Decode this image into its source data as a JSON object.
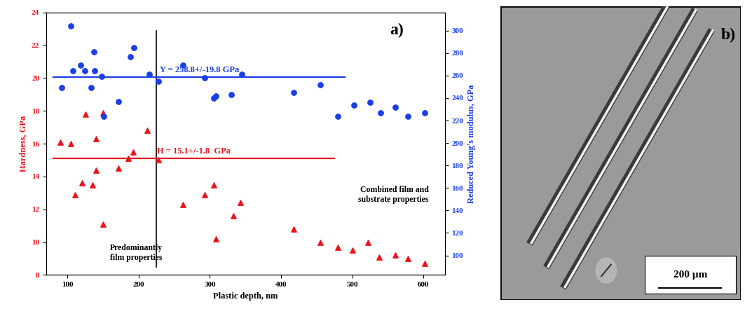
{
  "chart_data": {
    "type": "scatter",
    "x_label": "Plastic depth, nm",
    "y_label": "Hardness, GPa",
    "y2_label": "Reduced Young's modulus, GPa",
    "xlim": [
      70,
      630
    ],
    "xticks": [
      100,
      200,
      300,
      400,
      500,
      600
    ],
    "ylim": [
      8,
      24
    ],
    "yticks": [
      8,
      10,
      12,
      14,
      16,
      18,
      20,
      22,
      24
    ],
    "y2lim": [
      82.6,
      316.2
    ],
    "y2ticks": [
      100,
      120,
      140,
      160,
      180,
      200,
      220,
      240,
      260,
      280,
      300
    ],
    "grid": false,
    "series": [
      {
        "color": "#e8141c",
        "marker": "triangle",
        "axis": "y",
        "x": [
          90,
          105,
          110,
          120,
          125,
          135,
          140,
          140,
          150,
          150,
          172,
          185,
          192,
          212,
          228,
          262,
          293,
          305,
          308,
          333,
          343,
          418,
          455,
          480,
          500,
          522,
          538,
          560,
          578,
          602
        ],
        "values": [
          16.1,
          16.0,
          12.9,
          13.6,
          17.8,
          13.5,
          16.3,
          14.4,
          17.9,
          11.1,
          14.5,
          15.1,
          15.5,
          16.8,
          15.0,
          12.3,
          12.9,
          13.5,
          10.2,
          11.6,
          12.4,
          10.8,
          10.0,
          9.7,
          9.5,
          10.0,
          9.1,
          9.2,
          9.0,
          8.7
        ]
      },
      {
        "color": "#1a3ee8",
        "marker": "circle",
        "axis": "y2",
        "x": [
          92,
          105,
          108,
          118,
          124,
          133,
          137,
          138,
          148,
          151,
          172,
          188,
          193,
          215,
          228,
          262,
          293,
          305,
          308,
          330,
          345,
          418,
          455,
          480,
          502,
          525,
          540,
          560,
          578,
          602
        ],
        "values": [
          249,
          304,
          264,
          269,
          264,
          249,
          281,
          264,
          259,
          224,
          237,
          277,
          285,
          261,
          255,
          269,
          258,
          240,
          242,
          243,
          261,
          245,
          252,
          224,
          234,
          236,
          227,
          232,
          224,
          227
        ]
      }
    ],
    "reference_lines": [
      {
        "axis": "y",
        "value": 15.1,
        "x": [
          80,
          475
        ],
        "color": "#e8141c",
        "label": "H = 15.1+/-1.8  GPa"
      },
      {
        "axis": "y2",
        "value": 258.8,
        "x": [
          80,
          490
        ],
        "color": "#1a3ee8",
        "label": "Y = 258.8+/-19.8 GPa"
      }
    ],
    "vline": 225,
    "annotations": [
      "Predominantly\nfilm properties",
      "Combined film and\nsubstrate properties"
    ],
    "panel_label": "a)"
  },
  "micrograph": {
    "panel_label": "b)",
    "scale_bar": "200 µm"
  }
}
